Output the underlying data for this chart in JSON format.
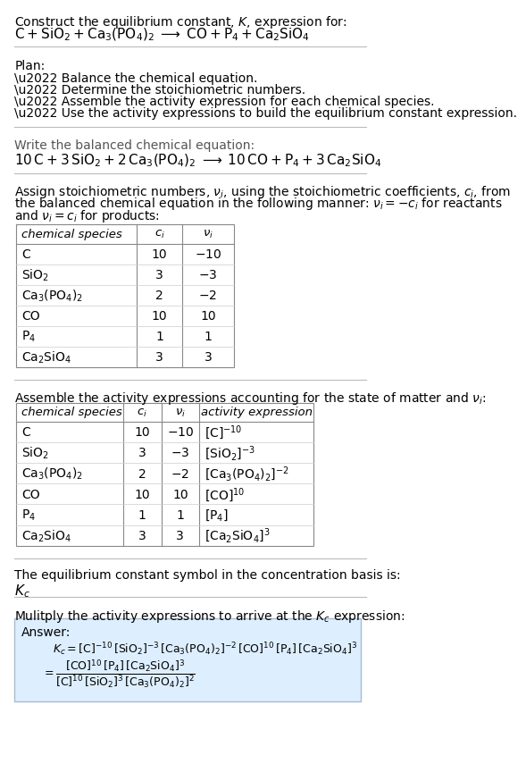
{
  "bg_color": "#ffffff",
  "title_line1": "Construct the equilibrium constant, $K$, expression for:",
  "title_line2": "$\\mathrm{C + SiO_2 + Ca_3(PO_4)_2 \\;\\longrightarrow\\; CO + P_4 + Ca_2SiO_4}$",
  "plan_header": "Plan:",
  "plan_items": [
    "\\u2022 Balance the chemical equation.",
    "\\u2022 Determine the stoichiometric numbers.",
    "\\u2022 Assemble the activity expression for each chemical species.",
    "\\u2022 Use the activity expressions to build the equilibrium constant expression."
  ],
  "balanced_header": "Write the balanced chemical equation:",
  "balanced_eq": "$\\mathrm{10\\,C + 3\\,SiO_2 + 2\\,Ca_3(PO_4)_2 \\;\\longrightarrow\\; 10\\,CO + P_4 + 3\\,Ca_2SiO_4}$",
  "stoich_lines": [
    "Assign stoichiometric numbers, $\\nu_i$, using the stoichiometric coefficients, $c_i$, from",
    "the balanced chemical equation in the following manner: $\\nu_i = -c_i$ for reactants",
    "and $\\nu_i = c_i$ for products:"
  ],
  "table1_headers": [
    "chemical species",
    "$c_i$",
    "$\\nu_i$"
  ],
  "table1_rows": [
    [
      "C",
      "10",
      "$-10$"
    ],
    [
      "$\\mathrm{SiO_2}$",
      "3",
      "$-3$"
    ],
    [
      "$\\mathrm{Ca_3(PO_4)_2}$",
      "2",
      "$-2$"
    ],
    [
      "CO",
      "10",
      "10"
    ],
    [
      "$\\mathrm{P_4}$",
      "1",
      "1"
    ],
    [
      "$\\mathrm{Ca_2SiO_4}$",
      "3",
      "3"
    ]
  ],
  "activity_header": "Assemble the activity expressions accounting for the state of matter and $\\nu_i$:",
  "table2_headers": [
    "chemical species",
    "$c_i$",
    "$\\nu_i$",
    "activity expression"
  ],
  "table2_rows": [
    [
      "C",
      "10",
      "$-10$",
      "$[\\mathrm{C}]^{-10}$"
    ],
    [
      "$\\mathrm{SiO_2}$",
      "3",
      "$-3$",
      "$[\\mathrm{SiO_2}]^{-3}$"
    ],
    [
      "$\\mathrm{Ca_3(PO_4)_2}$",
      "2",
      "$-2$",
      "$[\\mathrm{Ca_3(PO_4)_2}]^{-2}$"
    ],
    [
      "CO",
      "10",
      "10",
      "$[\\mathrm{CO}]^{10}$"
    ],
    [
      "$\\mathrm{P_4}$",
      "1",
      "1",
      "$[\\mathrm{P_4}]$"
    ],
    [
      "$\\mathrm{Ca_2SiO_4}$",
      "3",
      "3",
      "$[\\mathrm{Ca_2SiO_4}]^{3}$"
    ]
  ],
  "kc_header": "The equilibrium constant symbol in the concentration basis is:",
  "kc_symbol": "$K_c$",
  "multiply_header": "Mulitply the activity expressions to arrive at the $K_c$ expression:",
  "answer_box_color": "#ddeeff",
  "answer_box_edge": "#aabbcc"
}
